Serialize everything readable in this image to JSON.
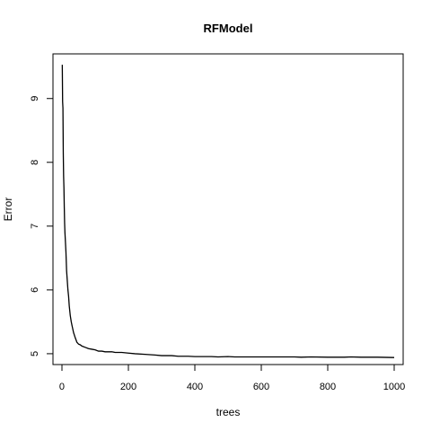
{
  "chart_data": {
    "type": "line",
    "title": "RFModel",
    "xlabel": "trees",
    "ylabel": "Error",
    "xlim": [
      -27,
      1027
    ],
    "ylim": [
      4.83,
      9.7
    ],
    "xticks": [
      0,
      200,
      400,
      600,
      800,
      1000
    ],
    "yticks": [
      5,
      6,
      7,
      8,
      9
    ],
    "grid": false,
    "line_color": "#000000",
    "series": [
      {
        "x": [
          1,
          2,
          3,
          4,
          5,
          6,
          7,
          8,
          9,
          10,
          12,
          14,
          16,
          18,
          20,
          22,
          25,
          28,
          30,
          35,
          40,
          45,
          50,
          55,
          60,
          70,
          80,
          90,
          100,
          110,
          120,
          130,
          150,
          160,
          180,
          200,
          220,
          250,
          280,
          300,
          330,
          350,
          380,
          400,
          450,
          470,
          500,
          520,
          550,
          600,
          650,
          700,
          720,
          750,
          800,
          850,
          870,
          900,
          950,
          1000
        ],
        "values": [
          9.53,
          8.95,
          8.85,
          8.15,
          7.78,
          7.6,
          7.3,
          7.05,
          6.9,
          6.8,
          6.6,
          6.3,
          6.15,
          6.0,
          5.9,
          5.75,
          5.6,
          5.5,
          5.45,
          5.33,
          5.25,
          5.18,
          5.15,
          5.14,
          5.12,
          5.1,
          5.08,
          5.07,
          5.06,
          5.04,
          5.04,
          5.03,
          5.03,
          5.02,
          5.02,
          5.01,
          5.0,
          4.99,
          4.98,
          4.97,
          4.97,
          4.96,
          4.96,
          4.955,
          4.955,
          4.95,
          4.955,
          4.95,
          4.95,
          4.95,
          4.95,
          4.95,
          4.945,
          4.95,
          4.945,
          4.945,
          4.95,
          4.945,
          4.945,
          4.94
        ]
      }
    ]
  }
}
